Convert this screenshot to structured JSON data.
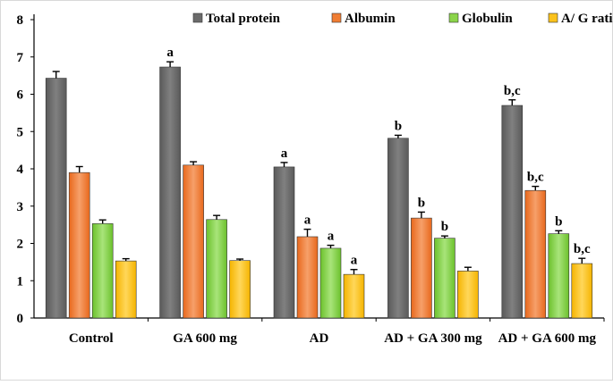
{
  "chart_data": {
    "type": "bar",
    "title": "",
    "xlabel": "",
    "ylabel": "",
    "ylim": [
      0,
      8
    ],
    "yticks": [
      "0",
      "1",
      "2",
      "3",
      "4",
      "5",
      "6",
      "7",
      "8"
    ],
    "grid": false,
    "legend_position": "top-right",
    "categories": [
      "Control",
      "GA 600 mg",
      "AD",
      "AD + GA 300 mg",
      "AD + GA 600 mg"
    ],
    "series": [
      {
        "name": "Total protein",
        "color": "#6b6b6b",
        "values": [
          6.43,
          6.73,
          4.05,
          4.82,
          5.7
        ],
        "errors": [
          0.18,
          0.14,
          0.12,
          0.08,
          0.15
        ],
        "annotations": [
          "",
          "a",
          "a",
          "b",
          "b,c"
        ]
      },
      {
        "name": "Albumin",
        "color": "#f07d33",
        "values": [
          3.9,
          4.1,
          2.18,
          2.68,
          3.42
        ],
        "errors": [
          0.16,
          0.09,
          0.2,
          0.16,
          0.11
        ],
        "annotations": [
          "",
          "",
          "a",
          "b",
          "b,c"
        ]
      },
      {
        "name": "Globulin",
        "color": "#8bd44a",
        "values": [
          2.53,
          2.64,
          1.87,
          2.14,
          2.26
        ],
        "errors": [
          0.1,
          0.11,
          0.08,
          0.06,
          0.08
        ],
        "annotations": [
          "",
          "",
          "a",
          "b",
          "b"
        ]
      },
      {
        "name": "A/ G ratio",
        "color": "#fbc21c",
        "values": [
          1.53,
          1.54,
          1.17,
          1.26,
          1.46
        ],
        "errors": [
          0.06,
          0.04,
          0.13,
          0.1,
          0.14
        ],
        "annotations": [
          "",
          "",
          "a",
          "",
          "b,c"
        ]
      }
    ]
  }
}
